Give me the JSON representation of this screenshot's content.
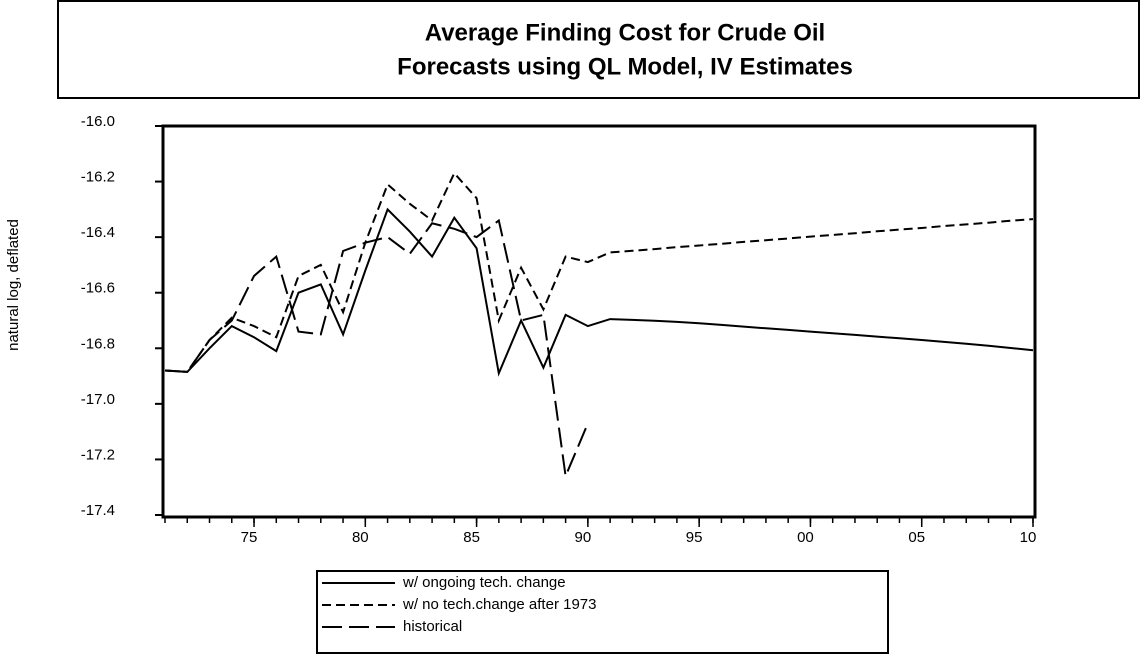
{
  "chart_data": {
    "type": "line",
    "title": "Average Finding Cost for Crude Oil",
    "subtitle": "Forecasts using QL Model, IV Estimates",
    "y_label": "natural log, deflated",
    "x": [
      1971,
      1972,
      1973,
      1974,
      1975,
      1976,
      1977,
      1978,
      1979,
      1980,
      1981,
      1982,
      1983,
      1984,
      1985,
      1986,
      1987,
      1988,
      1989,
      1990,
      1991,
      1992,
      1993,
      1994,
      1995,
      1996,
      1997,
      1998,
      1999,
      2000,
      2001,
      2002,
      2003,
      2004,
      2005,
      2006,
      2007,
      2008,
      2009,
      2010
    ],
    "xlim": [
      1971,
      2010
    ],
    "xticks": [
      {
        "value": 1975,
        "label": "75"
      },
      {
        "value": 1980,
        "label": "80"
      },
      {
        "value": 1985,
        "label": "85"
      },
      {
        "value": 1990,
        "label": "90"
      },
      {
        "value": 1995,
        "label": "95"
      },
      {
        "value": 2000,
        "label": "00"
      },
      {
        "value": 2005,
        "label": "05"
      },
      {
        "value": 2010,
        "label": "10"
      }
    ],
    "ylim": [
      -17.4,
      -16.0
    ],
    "yticks": [
      {
        "value": -16.0,
        "label": "-16.0"
      },
      -16.2,
      -16.4,
      -16.6,
      -16.8,
      {
        "value": -17.0,
        "label": "-17.0"
      },
      -17.2,
      -17.4
    ],
    "series": [
      {
        "name": "w/ ongoing tech. change",
        "color": "#000000",
        "dash": "solid",
        "values": [
          -16.88,
          -16.885,
          -16.8,
          -16.72,
          -16.76,
          -16.81,
          -16.6,
          -16.57,
          -16.75,
          -16.52,
          -16.3,
          -16.38,
          -16.47,
          -16.33,
          -16.44,
          -16.89,
          -16.7,
          -16.87,
          -16.68,
          -16.72,
          -16.695,
          -16.698,
          -16.701,
          -16.705,
          -16.71,
          -16.716,
          -16.722,
          -16.728,
          -16.734,
          -16.74,
          -16.746,
          -16.752,
          -16.758,
          -16.764,
          -16.77,
          -16.777,
          -16.784,
          -16.791,
          -16.799,
          -16.807
        ]
      },
      {
        "name": "w/ no tech.change after 1973",
        "color": "#000000",
        "dash": "short",
        "values": [
          -16.88,
          -16.885,
          -16.77,
          -16.69,
          -16.72,
          -16.76,
          -16.54,
          -16.5,
          -16.67,
          -16.42,
          -16.21,
          -16.28,
          -16.34,
          -16.17,
          -16.26,
          -16.7,
          -16.51,
          -16.66,
          -16.47,
          -16.49,
          -16.455,
          -16.449,
          -16.443,
          -16.436,
          -16.43,
          -16.424,
          -16.417,
          -16.411,
          -16.405,
          -16.398,
          -16.392,
          -16.386,
          -16.379,
          -16.373,
          -16.367,
          -16.36,
          -16.354,
          -16.348,
          -16.341,
          -16.335
        ]
      },
      {
        "name": "historical",
        "color": "#000000",
        "dash": "long",
        "values": [
          -16.88,
          -16.885,
          -16.77,
          -16.7,
          -16.54,
          -16.47,
          -16.74,
          -16.75,
          -16.45,
          -16.42,
          -16.4,
          -16.46,
          -16.35,
          -16.37,
          -16.4,
          -16.34,
          -16.7,
          -16.68,
          -17.26,
          -17.07,
          null,
          null,
          null,
          null,
          null,
          null,
          null,
          null,
          null,
          null,
          null,
          null,
          null,
          null,
          null,
          null,
          null,
          null,
          null,
          null
        ]
      }
    ]
  }
}
